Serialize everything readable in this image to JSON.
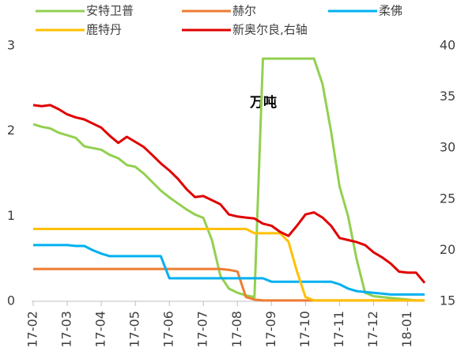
{
  "chart_data": {
    "type": "line",
    "annotation": "万吨",
    "x": [
      0,
      0.25,
      0.5,
      0.75,
      1,
      1.25,
      1.5,
      1.75,
      2,
      2.25,
      2.5,
      2.75,
      3,
      3.25,
      3.5,
      3.75,
      4,
      4.25,
      4.5,
      4.75,
      5,
      5.25,
      5.5,
      5.75,
      6,
      6.25,
      6.5,
      6.75,
      7,
      7.25,
      7.5,
      7.75,
      8,
      8.25,
      8.5,
      8.75,
      9,
      9.25,
      9.5,
      9.75,
      10,
      10.25,
      10.5,
      10.75,
      11,
      11.25,
      11.5
    ],
    "xlim": [
      0,
      11.5
    ],
    "xticks": [
      {
        "value": 0,
        "label": "17-02"
      },
      {
        "value": 1,
        "label": "17-03"
      },
      {
        "value": 2,
        "label": "17-04"
      },
      {
        "value": 3,
        "label": "17-05"
      },
      {
        "value": 4,
        "label": "17-06"
      },
      {
        "value": 5,
        "label": "17-07"
      },
      {
        "value": 6,
        "label": "17-08"
      },
      {
        "value": 7,
        "label": "17-09"
      },
      {
        "value": 8,
        "label": "17-10"
      },
      {
        "value": 9,
        "label": "17-11"
      },
      {
        "value": 10,
        "label": "17-12"
      },
      {
        "value": 11,
        "label": "18-01"
      }
    ],
    "ylim": [
      0,
      3
    ],
    "yticks": [
      0,
      1,
      2,
      3
    ],
    "y2lim": [
      15,
      40
    ],
    "y2ticks": [
      15,
      20,
      25,
      30,
      35,
      40
    ],
    "grid": false,
    "series": [
      {
        "name": "安特卫普",
        "color": "#92d050",
        "values": [
          2.08,
          2.05,
          2.03,
          1.98,
          1.95,
          1.92,
          1.82,
          1.8,
          1.78,
          1.72,
          1.68,
          1.6,
          1.58,
          1.5,
          1.4,
          1.3,
          1.22,
          1.15,
          1.08,
          1.02,
          0.98,
          0.72,
          0.3,
          0.15,
          0.1,
          0.07,
          0.05,
          2.85,
          2.85,
          2.85,
          2.85,
          2.85,
          2.85,
          2.85,
          2.55,
          2.0,
          1.35,
          1.0,
          0.5,
          0.1,
          0.06,
          0.05,
          0.04,
          0.03,
          0.02,
          0.01,
          0.01
        ]
      },
      {
        "name": "赫尔",
        "color": "#ed7d31",
        "values": [
          0.38,
          0.38,
          0.38,
          0.38,
          0.38,
          0.38,
          0.38,
          0.38,
          0.38,
          0.38,
          0.38,
          0.38,
          0.38,
          0.38,
          0.38,
          0.38,
          0.38,
          0.38,
          0.38,
          0.38,
          0.38,
          0.38,
          0.38,
          0.37,
          0.35,
          0.05,
          0.02,
          0.01,
          0.01,
          0.01,
          0.01,
          0.01,
          0.01,
          0.01,
          0.01,
          0.01,
          0.01,
          0.01,
          0.01,
          0.01,
          0.01,
          0.01,
          0.01,
          0.01,
          0.01,
          0.01,
          0.01
        ]
      },
      {
        "name": "柔佛",
        "color": "#00b0f0",
        "values": [
          0.66,
          0.66,
          0.66,
          0.66,
          0.66,
          0.65,
          0.65,
          0.6,
          0.56,
          0.53,
          0.53,
          0.53,
          0.53,
          0.53,
          0.53,
          0.53,
          0.27,
          0.27,
          0.27,
          0.27,
          0.27,
          0.27,
          0.27,
          0.27,
          0.27,
          0.27,
          0.27,
          0.27,
          0.23,
          0.23,
          0.23,
          0.23,
          0.23,
          0.23,
          0.23,
          0.23,
          0.2,
          0.15,
          0.12,
          0.11,
          0.1,
          0.09,
          0.08,
          0.08,
          0.08,
          0.08,
          0.08
        ]
      },
      {
        "name": "鹿特丹",
        "color": "#ffc000",
        "values": [
          0.85,
          0.85,
          0.85,
          0.85,
          0.85,
          0.85,
          0.85,
          0.85,
          0.85,
          0.85,
          0.85,
          0.85,
          0.85,
          0.85,
          0.85,
          0.85,
          0.85,
          0.85,
          0.85,
          0.85,
          0.85,
          0.85,
          0.85,
          0.85,
          0.85,
          0.85,
          0.8,
          0.8,
          0.8,
          0.8,
          0.7,
          0.35,
          0.05,
          0.01,
          0.01,
          0.01,
          0.01,
          0.01,
          0.01,
          0.01,
          0.01,
          0.01,
          0.01,
          0.01,
          0.01,
          0.01,
          0.01
        ]
      },
      {
        "name": "新奥尔良,右轴",
        "color": "#e00000",
        "axis": "y2",
        "values": [
          34.2,
          34.1,
          34.2,
          33.8,
          33.3,
          33.0,
          32.8,
          32.4,
          32.0,
          31.2,
          30.5,
          31.1,
          30.6,
          30.1,
          29.3,
          28.5,
          27.8,
          27.0,
          26.0,
          25.2,
          25.3,
          24.9,
          24.5,
          23.5,
          23.3,
          23.2,
          23.1,
          22.6,
          22.4,
          21.8,
          21.4,
          22.4,
          23.5,
          23.7,
          23.2,
          22.4,
          21.2,
          21.0,
          20.8,
          20.5,
          19.8,
          19.3,
          18.7,
          17.9,
          17.8,
          17.8,
          16.8
        ]
      }
    ]
  }
}
